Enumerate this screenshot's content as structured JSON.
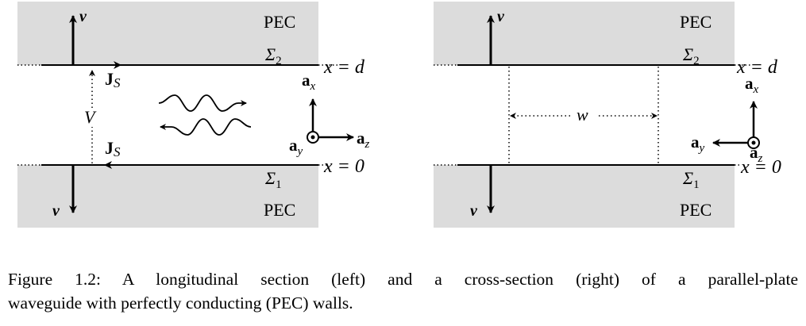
{
  "figure": {
    "left_panel": {
      "pec_top": "PEC",
      "pec_bottom": "PEC",
      "sigma_top": "Σ",
      "sigma_top_sub": "2",
      "sigma_bottom": "Σ",
      "sigma_bottom_sub": "1",
      "x_d": "x = d",
      "x_0": "x = 0",
      "nu_top": "ν",
      "nu_bottom": "ν",
      "js_top": "J",
      "js_top_sub": "S",
      "js_bottom": "J",
      "js_bottom_sub": "S",
      "voltage": "V",
      "ax": "a",
      "ax_sub": "x",
      "ay": "a",
      "ay_sub": "y",
      "az": "a",
      "az_sub": "z"
    },
    "right_panel": {
      "pec_top": "PEC",
      "pec_bottom": "PEC",
      "sigma_top": "Σ",
      "sigma_top_sub": "2",
      "sigma_bottom": "Σ",
      "sigma_bottom_sub": "1",
      "x_d": "x = d",
      "x_0": "x = 0",
      "nu_top": "ν",
      "nu_bottom": "ν",
      "width": "w",
      "ax": "a",
      "ax_sub": "x",
      "ay": "a",
      "ay_sub": "y",
      "az": "a",
      "az_sub": "z"
    }
  },
  "caption": {
    "line1": "Figure 1.2: A longitudinal section (left) and a cross-section (right) of a parallel-plate",
    "line2": "waveguide with perfectly conducting (PEC) walls."
  }
}
